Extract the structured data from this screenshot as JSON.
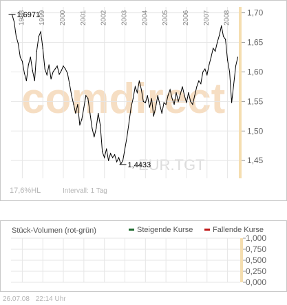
{
  "chart_data": [
    {
      "type": "line",
      "series": [
        {
          "x": [
            1997.5,
            1997.6,
            1997.7,
            1997.8,
            1997.9,
            1998.0,
            1998.1,
            1998.2,
            1998.3,
            1998.4,
            1998.5,
            1998.6,
            1998.7,
            1998.8,
            1998.9,
            1999.0,
            1999.1,
            1999.2,
            1999.3,
            1999.4,
            1999.5,
            1999.6,
            1999.7,
            1999.8,
            1999.9,
            2000.0,
            2000.1,
            2000.2,
            2000.3,
            2000.4,
            2000.5,
            2000.6,
            2000.7,
            2000.8,
            2000.9,
            2001.0,
            2001.1,
            2001.2,
            2001.3,
            2001.4,
            2001.5,
            2001.6,
            2001.7,
            2001.8,
            2001.9,
            2002.0,
            2002.1,
            2002.2,
            2002.3,
            2002.4,
            2002.5,
            2002.6,
            2002.7,
            2002.8,
            2002.9,
            2003.0,
            2003.1,
            2003.2,
            2003.3,
            2003.4,
            2003.5,
            2003.6,
            2003.7,
            2003.8,
            2003.9,
            2004.0,
            2004.1,
            2004.2,
            2004.3,
            2004.4,
            2004.5,
            2004.6,
            2004.7,
            2004.8,
            2004.9,
            2005.0,
            2005.1,
            2005.2,
            2005.3,
            2005.4,
            2005.5,
            2005.6,
            2005.7,
            2005.8,
            2005.9,
            2006.0,
            2006.1,
            2006.2,
            2006.3,
            2006.4,
            2006.5,
            2006.6,
            2006.7,
            2006.8,
            2006.9,
            2007.0,
            2007.1,
            2007.2,
            2007.3,
            2007.4,
            2007.5,
            2007.6,
            2007.7,
            2007.8,
            2007.9,
            2008.0,
            2008.1,
            2008.2,
            2008.3,
            2008.4,
            2008.5
          ],
          "y": [
            1.697,
            1.685,
            1.66,
            1.648,
            1.625,
            1.618,
            1.598,
            1.585,
            1.612,
            1.625,
            1.602,
            1.585,
            1.635,
            1.66,
            1.668,
            1.64,
            1.605,
            1.595,
            1.612,
            1.588,
            1.6,
            1.605,
            1.61,
            1.596,
            1.602,
            1.61,
            1.605,
            1.598,
            1.58,
            1.56,
            1.545,
            1.53,
            1.545,
            1.51,
            1.52,
            1.54,
            1.56,
            1.555,
            1.53,
            1.505,
            1.49,
            1.505,
            1.53,
            1.51,
            1.465,
            1.455,
            1.47,
            1.45,
            1.462,
            1.455,
            1.46,
            1.448,
            1.455,
            1.444,
            1.45,
            1.47,
            1.49,
            1.515,
            1.54,
            1.555,
            1.575,
            1.565,
            1.585,
            1.57,
            1.55,
            1.548,
            1.56,
            1.54,
            1.555,
            1.525,
            1.54,
            1.56,
            1.545,
            1.53,
            1.548,
            1.545,
            1.56,
            1.57,
            1.555,
            1.545,
            1.565,
            1.55,
            1.562,
            1.575,
            1.56,
            1.548,
            1.565,
            1.55,
            1.545,
            1.56,
            1.575,
            1.585,
            1.58,
            1.6,
            1.605,
            1.595,
            1.612,
            1.625,
            1.64,
            1.635,
            1.65,
            1.662,
            1.678,
            1.66,
            1.655,
            1.62,
            1.6,
            1.548,
            1.578,
            1.61,
            1.625
          ]
        }
      ],
      "ylim": [
        1.42,
        1.71
      ],
      "xlim": [
        1997.45,
        2008.55
      ],
      "x_tick_labels": [
        "1998",
        "1999",
        "2000",
        "2001",
        "2002",
        "2003",
        "2004",
        "2005",
        "2006",
        "2007",
        "2008"
      ],
      "y_tick_labels": [
        "1,70",
        "1,65",
        "1,60",
        "1,55",
        "1,50",
        "1,45"
      ],
      "y_tick_values": [
        1.7,
        1.65,
        1.6,
        1.55,
        1.5,
        1.45
      ],
      "annotations": [
        {
          "text": "1,6971",
          "x": 1997.5,
          "y": 1.6971
        },
        {
          "text": "1,4433",
          "x": 2002.9,
          "y": 1.4433
        }
      ],
      "watermark": "comdirect",
      "symbol_label": "EUR.TGT",
      "range_label": "17,6%HL",
      "interval_label": "Intervall: 1 Tag",
      "colors": {
        "line": "#000000",
        "grid": "#e6e6e6",
        "axis_band": "#f5deb0",
        "watermark": "#f0c896"
      }
    },
    {
      "type": "bar",
      "title": "Stück-Volumen (rot-grün)",
      "legend": [
        {
          "name": "Steigende Kurse",
          "color": "#1f6b30"
        },
        {
          "name": "Fallende Kurse",
          "color": "#c01818"
        }
      ],
      "ylim": [
        0,
        1
      ],
      "y_tick_labels": [
        "1,000",
        "0,750",
        "0,500",
        "0,250",
        "0,000"
      ],
      "y_tick_values": [
        1.0,
        0.75,
        0.5,
        0.25,
        0.0
      ],
      "x_grid_labels": [
        "1998",
        "1999",
        "2000",
        "2001",
        "2002",
        "2003",
        "2004",
        "2005",
        "2006",
        "2007",
        "2008"
      ],
      "values": []
    }
  ],
  "footer": {
    "date": "26.07.08",
    "time": "22:14 Uhr"
  }
}
